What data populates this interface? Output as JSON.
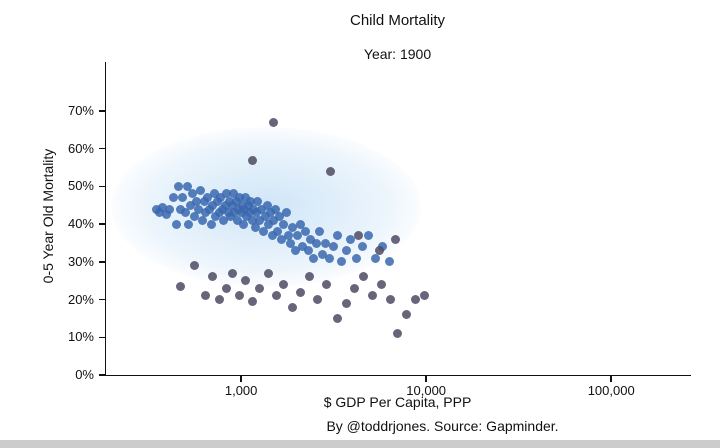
{
  "title": "Child Mortality",
  "subtitle": "Year: 1900",
  "caption": "By @toddrjones. Source: Gapminder.",
  "colors": {
    "point_main": "#3a67ae",
    "point_dark": "#4e4a63",
    "axis": "#111111",
    "background": "#ffffff",
    "bottom_bar": "#cccccc"
  },
  "chart_data": {
    "type": "scatter",
    "title": "Child Mortality",
    "subtitle": "Year: 1900",
    "xlabel": "$ GDP Per Capita, PPP",
    "ylabel": "0-5 Year Old Mortality",
    "x_scale": "log",
    "xlim": [
      186,
      270000
    ],
    "ylim": [
      0,
      83
    ],
    "x_ticks": [
      1000,
      10000,
      100000
    ],
    "x_tick_labels": [
      "1,000",
      "10,000",
      "100,000"
    ],
    "y_ticks": [
      0,
      10,
      20,
      30,
      40,
      50,
      60,
      70
    ],
    "y_tick_labels": [
      "0%",
      "10%",
      "20%",
      "30%",
      "40%",
      "50%",
      "60%",
      "70%"
    ],
    "grid": false,
    "legend": "none",
    "series": [
      {
        "name": "countries-blue",
        "color": "#3a67ae",
        "points": [
          [
            350,
            44
          ],
          [
            360,
            43
          ],
          [
            375,
            44.5
          ],
          [
            395,
            42.5
          ],
          [
            410,
            44
          ],
          [
            430,
            47
          ],
          [
            445,
            40
          ],
          [
            460,
            50
          ],
          [
            470,
            44
          ],
          [
            480,
            47
          ],
          [
            500,
            43
          ],
          [
            510,
            50
          ],
          [
            520,
            40
          ],
          [
            530,
            45
          ],
          [
            545,
            48
          ],
          [
            560,
            42
          ],
          [
            575,
            46
          ],
          [
            590,
            44
          ],
          [
            600,
            49
          ],
          [
            615,
            41
          ],
          [
            630,
            46
          ],
          [
            645,
            43
          ],
          [
            660,
            47
          ],
          [
            675,
            44
          ],
          [
            690,
            40
          ],
          [
            700,
            45
          ],
          [
            715,
            48
          ],
          [
            730,
            42
          ],
          [
            745,
            46
          ],
          [
            760,
            43
          ],
          [
            775,
            47
          ],
          [
            790,
            44
          ],
          [
            805,
            41
          ],
          [
            820,
            45
          ],
          [
            835,
            48
          ],
          [
            850,
            43
          ],
          [
            865,
            46
          ],
          [
            880,
            42
          ],
          [
            895,
            45
          ],
          [
            910,
            48
          ],
          [
            925,
            43
          ],
          [
            940,
            46
          ],
          [
            955,
            41
          ],
          [
            970,
            44
          ],
          [
            985,
            47
          ],
          [
            1000,
            43
          ],
          [
            1015,
            45
          ],
          [
            1030,
            40
          ],
          [
            1045,
            44
          ],
          [
            1060,
            47
          ],
          [
            1075,
            42
          ],
          [
            1090,
            45
          ],
          [
            1110,
            43
          ],
          [
            1130,
            46
          ],
          [
            1150,
            41
          ],
          [
            1170,
            44
          ],
          [
            1190,
            39
          ],
          [
            1210,
            43
          ],
          [
            1230,
            46
          ],
          [
            1260,
            41
          ],
          [
            1290,
            44
          ],
          [
            1320,
            38
          ],
          [
            1350,
            42
          ],
          [
            1380,
            45
          ],
          [
            1410,
            40
          ],
          [
            1440,
            43
          ],
          [
            1470,
            37
          ],
          [
            1500,
            41
          ],
          [
            1540,
            44
          ],
          [
            1580,
            38
          ],
          [
            1620,
            42
          ],
          [
            1660,
            36
          ],
          [
            1700,
            40
          ],
          [
            1750,
            43
          ],
          [
            1800,
            37
          ],
          [
            1850,
            35
          ],
          [
            1900,
            39
          ],
          [
            1960,
            33
          ],
          [
            2020,
            37
          ],
          [
            2080,
            40
          ],
          [
            2150,
            34
          ],
          [
            2220,
            38
          ],
          [
            2300,
            33
          ],
          [
            2380,
            36
          ],
          [
            2460,
            31
          ],
          [
            2550,
            35
          ],
          [
            2650,
            38
          ],
          [
            2750,
            32
          ],
          [
            2850,
            35
          ],
          [
            3000,
            31
          ],
          [
            3150,
            34
          ],
          [
            3300,
            37
          ],
          [
            3500,
            30
          ],
          [
            3700,
            33
          ],
          [
            3900,
            36
          ],
          [
            4200,
            31
          ],
          [
            4500,
            34
          ],
          [
            4900,
            37
          ],
          [
            5300,
            31
          ],
          [
            5800,
            34
          ],
          [
            6300,
            30
          ]
        ]
      },
      {
        "name": "countries-dark",
        "color": "#4e4a63",
        "points": [
          [
            1500,
            67
          ],
          [
            1150,
            57
          ],
          [
            3050,
            54
          ],
          [
            470,
            23.5
          ],
          [
            560,
            29
          ],
          [
            640,
            21
          ],
          [
            700,
            26
          ],
          [
            760,
            20
          ],
          [
            830,
            23
          ],
          [
            900,
            27
          ],
          [
            980,
            21
          ],
          [
            1060,
            25
          ],
          [
            1150,
            19.5
          ],
          [
            1250,
            23
          ],
          [
            1400,
            27
          ],
          [
            1550,
            21
          ],
          [
            1700,
            24
          ],
          [
            1900,
            18
          ],
          [
            2100,
            22
          ],
          [
            2350,
            26
          ],
          [
            2600,
            20
          ],
          [
            2900,
            24
          ],
          [
            3300,
            15
          ],
          [
            3700,
            19
          ],
          [
            4100,
            23
          ],
          [
            4600,
            26
          ],
          [
            5100,
            21
          ],
          [
            5700,
            24
          ],
          [
            6400,
            20
          ],
          [
            7000,
            11
          ],
          [
            7800,
            16
          ],
          [
            8800,
            20
          ],
          [
            9800,
            21
          ],
          [
            4300,
            37
          ],
          [
            5600,
            33
          ],
          [
            6800,
            36
          ]
        ]
      }
    ]
  }
}
